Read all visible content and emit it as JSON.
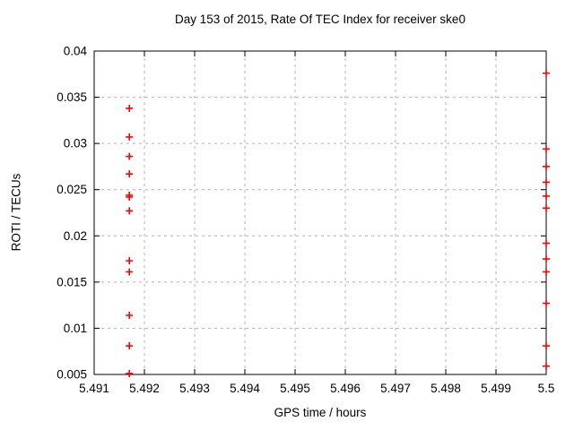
{
  "chart_data": {
    "type": "scatter",
    "title": "Day 153 of 2015, Rate Of TEC Index for receiver ske0",
    "xlabel": "GPS time / hours",
    "ylabel": "ROTI / TECUs",
    "xlim": [
      5.491,
      5.5
    ],
    "ylim": [
      0.005,
      0.04
    ],
    "xticks": [
      5.491,
      5.492,
      5.493,
      5.494,
      5.495,
      5.496,
      5.497,
      5.498,
      5.499,
      5.5
    ],
    "xtick_labels": [
      "5.491",
      "5.492",
      "5.493",
      "5.494",
      "5.495",
      "5.496",
      "5.497",
      "5.498",
      "5.499",
      "5.5"
    ],
    "yticks": [
      0.005,
      0.01,
      0.015,
      0.02,
      0.025,
      0.03,
      0.035,
      0.04
    ],
    "ytick_labels": [
      "0.005",
      "0.01",
      "0.015",
      "0.02",
      "0.025",
      "0.03",
      "0.035",
      "0.04"
    ],
    "grid": true,
    "legend": "none",
    "marker": "plus",
    "marker_color": "#ff0000",
    "grid_color": "#b3b3b3",
    "axis_color": "#000000",
    "series": [
      {
        "name": "ROTI",
        "points": [
          [
            5.4917,
            0.0338
          ],
          [
            5.4917,
            0.0307
          ],
          [
            5.4917,
            0.0286
          ],
          [
            5.4917,
            0.0267
          ],
          [
            5.4917,
            0.0244
          ],
          [
            5.4917,
            0.0242
          ],
          [
            5.4917,
            0.0227
          ],
          [
            5.4917,
            0.0173
          ],
          [
            5.4917,
            0.0161
          ],
          [
            5.4917,
            0.0114
          ],
          [
            5.4917,
            0.0081
          ],
          [
            5.4917,
            0.0051
          ],
          [
            5.5,
            0.0376
          ],
          [
            5.5,
            0.0294
          ],
          [
            5.5,
            0.0275
          ],
          [
            5.5,
            0.0258
          ],
          [
            5.5,
            0.0243
          ],
          [
            5.5,
            0.023
          ],
          [
            5.5,
            0.0192
          ],
          [
            5.5,
            0.0175
          ],
          [
            5.5,
            0.0161
          ],
          [
            5.5,
            0.0127
          ],
          [
            5.5,
            0.0081
          ],
          [
            5.5,
            0.0059
          ]
        ]
      }
    ]
  }
}
